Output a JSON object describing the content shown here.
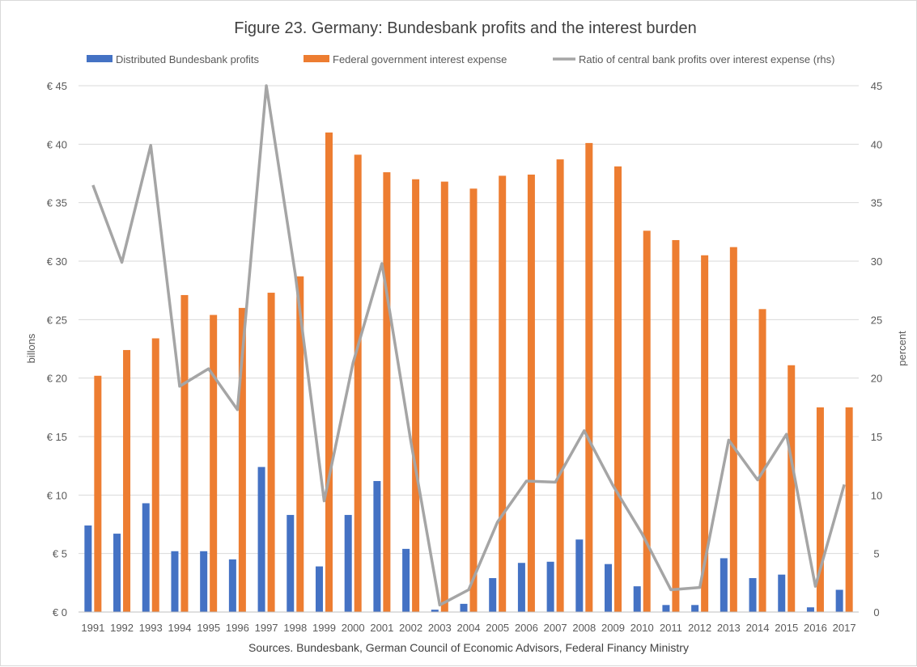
{
  "chart_data": {
    "type": "bar",
    "title": "Figure 23. Germany: Bundesbank profits and the interest burden",
    "source_note": "Sources. Bundesbank, German Council of Economic Advisors, Federal Financy Ministry",
    "ylabel_left": "billons",
    "ylabel_right": "percent",
    "ylim_left": [
      0,
      45
    ],
    "ylim_right": [
      0,
      45
    ],
    "y_ticks_left": [
      "€ 0",
      "€ 5",
      "€ 10",
      "€ 15",
      "€ 20",
      "€ 25",
      "€ 30",
      "€ 35",
      "€ 40",
      "€ 45"
    ],
    "y_ticks_right": [
      "0",
      "5",
      "10",
      "15",
      "20",
      "25",
      "30",
      "35",
      "40",
      "45"
    ],
    "grid": true,
    "legend_position": "top",
    "categories": [
      "1991",
      "1992",
      "1993",
      "1994",
      "1995",
      "1996",
      "1997",
      "1998",
      "1999",
      "2000",
      "2001",
      "2002",
      "2003",
      "2004",
      "2005",
      "2006",
      "2007",
      "2008",
      "2009",
      "2010",
      "2011",
      "2012",
      "2013",
      "2014",
      "2015",
      "2016",
      "2017"
    ],
    "series": [
      {
        "name": "Distributed Bundesbank profits",
        "type": "bar",
        "axis": "left",
        "color": "#4472c4",
        "values": [
          7.4,
          6.7,
          9.3,
          5.2,
          5.2,
          4.5,
          12.4,
          8.3,
          3.9,
          8.3,
          11.2,
          5.4,
          0.2,
          0.7,
          2.9,
          4.2,
          4.3,
          6.2,
          4.1,
          2.2,
          0.6,
          0.6,
          4.6,
          2.9,
          3.2,
          0.4,
          1.9
        ]
      },
      {
        "name": "Federal government interest expense",
        "type": "bar",
        "axis": "left",
        "color": "#ed7d31",
        "values": [
          20.2,
          22.4,
          23.4,
          27.1,
          25.4,
          26.0,
          27.3,
          28.7,
          41.0,
          39.1,
          37.6,
          37.0,
          36.8,
          36.2,
          37.3,
          37.4,
          38.7,
          40.1,
          38.1,
          32.6,
          31.8,
          30.5,
          31.2,
          25.9,
          21.1,
          17.5,
          17.5
        ]
      },
      {
        "name": "Ratio of central bank profits over interest expense (rhs)",
        "type": "line",
        "axis": "right",
        "color": "#a5a5a5",
        "values": [
          36.5,
          29.9,
          39.9,
          19.3,
          20.8,
          17.3,
          45.0,
          28.9,
          9.5,
          21.3,
          29.8,
          14.6,
          0.6,
          1.9,
          7.7,
          11.2,
          11.1,
          15.5,
          10.8,
          6.7,
          1.9,
          2.1,
          14.7,
          11.3,
          15.2,
          2.2,
          10.9
        ]
      }
    ],
    "colors": {
      "grid": "#d9d9d9",
      "text": "#595959"
    }
  }
}
